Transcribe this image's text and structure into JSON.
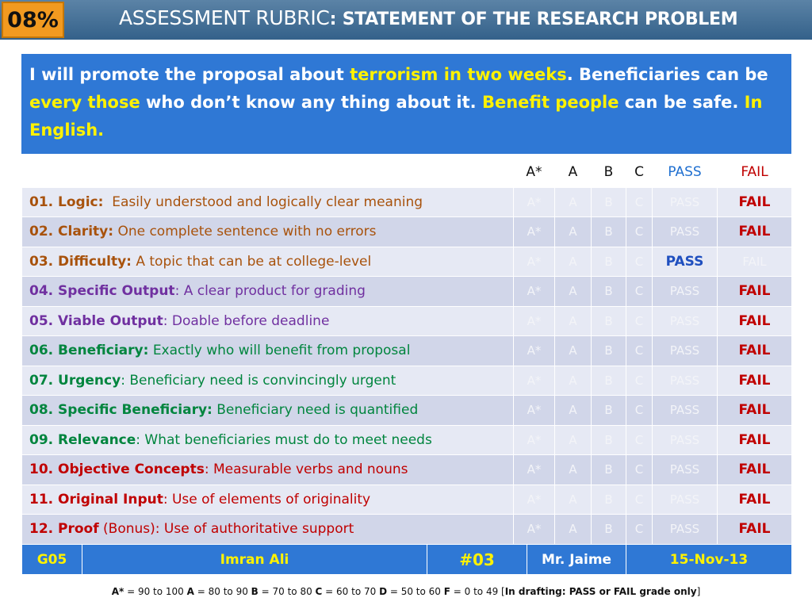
{
  "header": {
    "score_badge": "08%",
    "title_prefix": "ASSESSMENT RUBRIC",
    "title_colon": ":",
    "title_bold": "STATEMENT OF THE RESEARCH PROBLEM"
  },
  "problem_statement": {
    "p1": "I will promote the proposal about ",
    "h1": "terrorism in two weeks",
    "p2": ". Beneficiaries can be ",
    "h2": "every those",
    "p3": " who don’t know any thing about it. ",
    "h3": "Benefit people",
    "p4": " can be safe. ",
    "h4": "In English."
  },
  "grade_columns": [
    "A*",
    "A",
    "B",
    "C",
    "PASS",
    "FAIL"
  ],
  "criteria": [
    {
      "num": "01. Logic:",
      "sep": "  ",
      "desc": "Easily understood and logically clear meaning",
      "grades": [
        "A*",
        "A",
        "B",
        "C",
        "PASS",
        "FAIL"
      ],
      "selected": "FAIL"
    },
    {
      "num": "02. Clarity:",
      "sep": " ",
      "desc": "One complete sentence with no errors",
      "grades": [
        "A*",
        "A",
        "B",
        "C",
        "PASS",
        "FAIL"
      ],
      "selected": "FAIL"
    },
    {
      "num": "03. Difficulty:",
      "sep": " ",
      "desc": "A topic that can be at college-level",
      "grades": [
        "A*",
        "A",
        "B",
        "C",
        "PASS",
        "FAIL"
      ],
      "selected": "PASS"
    },
    {
      "num": "04. Specific Output",
      "sep": ": ",
      "desc": "A clear product for grading",
      "grades": [
        "A*",
        "A",
        "B",
        "C",
        "PASS",
        "FAIL"
      ],
      "selected": "FAIL"
    },
    {
      "num": "05. Viable Output",
      "sep": ": ",
      "desc": "Doable before deadline",
      "grades": [
        "A*",
        "A",
        "B",
        "C",
        "PASS",
        "FAIL"
      ],
      "selected": "FAIL"
    },
    {
      "num": "06. Beneficiary:",
      "sep": " ",
      "desc": "Exactly who will benefit from proposal",
      "grades": [
        "A*",
        "A",
        "B",
        "C",
        "PASS",
        "FAIL"
      ],
      "selected": "FAIL"
    },
    {
      "num": "07. Urgency",
      "sep": ": ",
      "desc": "Beneficiary need is convincingly urgent",
      "grades": [
        "A*",
        "A",
        "B",
        "C",
        "PASS",
        "FAIL"
      ],
      "selected": "FAIL"
    },
    {
      "num": "08. Specific Beneficiary:",
      "sep": " ",
      "desc": "Beneficiary need is quantified",
      "grades": [
        "A*",
        "A",
        "B",
        "C",
        "PASS",
        "FAIL"
      ],
      "selected": "FAIL"
    },
    {
      "num": "09. Relevance",
      "sep": ": ",
      "desc": "What beneficiaries must do to meet needs",
      "grades": [
        "A*",
        "A",
        "B",
        "C",
        "PASS",
        "FAIL"
      ],
      "selected": "FAIL"
    },
    {
      "num": "10. Objective Concepts",
      "sep": ": ",
      "desc": "Measurable verbs and nouns",
      "grades": [
        "A*",
        "A",
        "B",
        "C",
        "PASS",
        "FAIL"
      ],
      "selected": "FAIL"
    },
    {
      "num": "11. Original Input",
      "sep": ": ",
      "desc": "Use of elements of originality",
      "grades": [
        "A*",
        "A",
        "B",
        "C",
        "PASS",
        "FAIL"
      ],
      "selected": "FAIL"
    },
    {
      "num": "12. Proof",
      "sep": " ",
      "desc": "(Bonus): Use of authoritative support",
      "grades": [
        "A*",
        "A",
        "B",
        "C",
        "PASS",
        "FAIL"
      ],
      "selected": "FAIL"
    }
  ],
  "footer": {
    "group": "G05",
    "student": "Imran Ali",
    "number": "#03",
    "teacher": "Mr. Jaime",
    "date": "15-Nov-13"
  },
  "legend": {
    "a_star_label": "A*",
    "a_star_range": " = 90 to 100  ",
    "a_label": "A",
    "a_range": " = 80 to 90 ",
    "b_label": "B",
    "b_range": " = 70 to 80 ",
    "c_label": "C",
    "c_range": " = 60 to 70 ",
    "d_label": "D",
    "d_range": " = 50 to 60 ",
    "f_label": "F",
    "f_range": " = 0 to 49 [",
    "note": "In drafting: PASS or FAIL grade only",
    "close": "]"
  },
  "colors": {
    "title_bar": "#3f6c94",
    "badge": "#f29a20",
    "panel_blue": "#2f78d5",
    "highlight_yellow": "#fff200",
    "fail_red": "#c00000",
    "pass_blue": "#1f4fbf"
  }
}
